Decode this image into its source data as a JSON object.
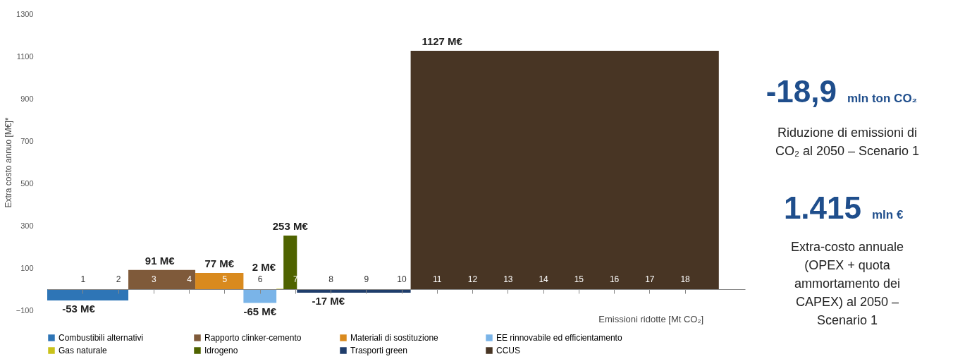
{
  "chart_data": {
    "type": "area",
    "xlabel": "Emissioni ridotte [Mt CO₂]",
    "ylabel": "Extra costo annuo [M€]*",
    "xlim": [
      0,
      19.7
    ],
    "xticks": [
      1,
      2,
      3,
      4,
      5,
      6,
      7,
      8,
      9,
      10,
      11,
      12,
      13,
      14,
      15,
      16,
      17,
      18
    ],
    "ylim": [
      -100,
      1300
    ],
    "yticks": [
      -100,
      100,
      300,
      500,
      700,
      900,
      1100,
      1300
    ],
    "grid": false,
    "legend": "bottom",
    "series": [
      {
        "name": "Combustibili alternativi",
        "color": "#2e75b6",
        "x": [
          0,
          2.29
        ],
        "values": [
          -53,
          -53
        ],
        "value_labels": [
          "-53 M€",
          null
        ]
      },
      {
        "name": "Rapporto clinker-cemento",
        "color": "#7f5a3a",
        "x": [
          2.29,
          4.18
        ],
        "values": [
          91,
          91
        ],
        "value_labels": [
          "91 M€",
          null
        ]
      },
      {
        "name": "Materiali di sostituzione",
        "color": "#d98a1e",
        "x": [
          4.18,
          5.54
        ],
        "values": [
          77,
          77
        ],
        "value_labels": [
          "77 M€",
          null
        ]
      },
      {
        "name": "EE rinnovabile ed efficientamento",
        "color": "#7ab4e8",
        "x": [
          5.54,
          6.47
        ],
        "values": [
          -65,
          -65
        ],
        "value_labels": [
          "-65 M€",
          null
        ]
      },
      {
        "name": "Gas naturale",
        "color": "#c9c21a",
        "x": [
          6.47,
          6.67
        ],
        "values": [
          2,
          2
        ],
        "value_labels": [
          "2 M€",
          null
        ]
      },
      {
        "name": "Idrogeno",
        "color": "#4f6300",
        "x": [
          6.67,
          7.05
        ],
        "values": [
          253,
          253
        ],
        "value_labels": [
          "253 M€",
          null
        ]
      },
      {
        "name": "Trasporti green",
        "color": "#1f3d6b",
        "x": [
          7.05,
          10.26
        ],
        "values": [
          -17,
          -17
        ],
        "value_labels": [
          "-17 M€",
          null
        ]
      },
      {
        "name": "CCUS",
        "color": "#483524",
        "x": [
          10.26,
          18.96
        ],
        "values": [
          1127,
          1127
        ],
        "value_labels": [
          "1127 M€",
          null
        ]
      }
    ],
    "annotations": [
      "-18,9",
      "mln ton CO₂",
      "Riduzione di emissioni di CO₂ al 2050 – Scenario 1",
      "1.415",
      "mln €",
      "Extra-costo annuale (OPEX + quota ammortamento dei CAPEX) al 2050 – Scenario 1"
    ]
  }
}
